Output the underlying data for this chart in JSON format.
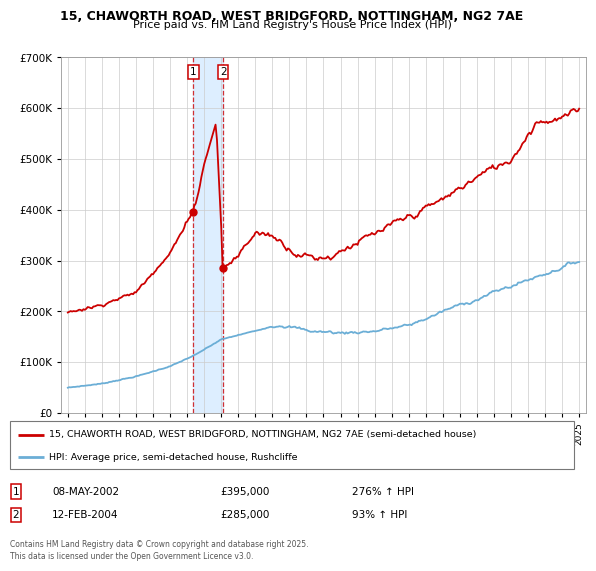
{
  "title": "15, CHAWORTH ROAD, WEST BRIDGFORD, NOTTINGHAM, NG2 7AE",
  "subtitle": "Price paid vs. HM Land Registry's House Price Index (HPI)",
  "legend_line1": "15, CHAWORTH ROAD, WEST BRIDGFORD, NOTTINGHAM, NG2 7AE (semi-detached house)",
  "legend_line2": "HPI: Average price, semi-detached house, Rushcliffe",
  "footer": "Contains HM Land Registry data © Crown copyright and database right 2025.\nThis data is licensed under the Open Government Licence v3.0.",
  "transaction1_label": "1",
  "transaction1_date": "08-MAY-2002",
  "transaction1_price": "£395,000",
  "transaction1_hpi": "276% ↑ HPI",
  "transaction1_year": 2002.37,
  "transaction1_value": 395000,
  "transaction2_label": "2",
  "transaction2_date": "12-FEB-2004",
  "transaction2_price": "£285,000",
  "transaction2_hpi": "93% ↑ HPI",
  "transaction2_year": 2004.12,
  "transaction2_value": 285000,
  "hpi_color": "#6baed6",
  "price_color": "#cc0000",
  "highlight_color": "#ddeeff",
  "ylim": [
    0,
    700000
  ],
  "yticks": [
    0,
    100000,
    200000,
    300000,
    400000,
    500000,
    600000,
    700000
  ],
  "ytick_labels": [
    "£0",
    "£100K",
    "£200K",
    "£300K",
    "£400K",
    "£500K",
    "£600K",
    "£700K"
  ],
  "xmin": 1994.6,
  "xmax": 2025.4,
  "grid_color": "#cccccc",
  "bg_color": "#ffffff"
}
